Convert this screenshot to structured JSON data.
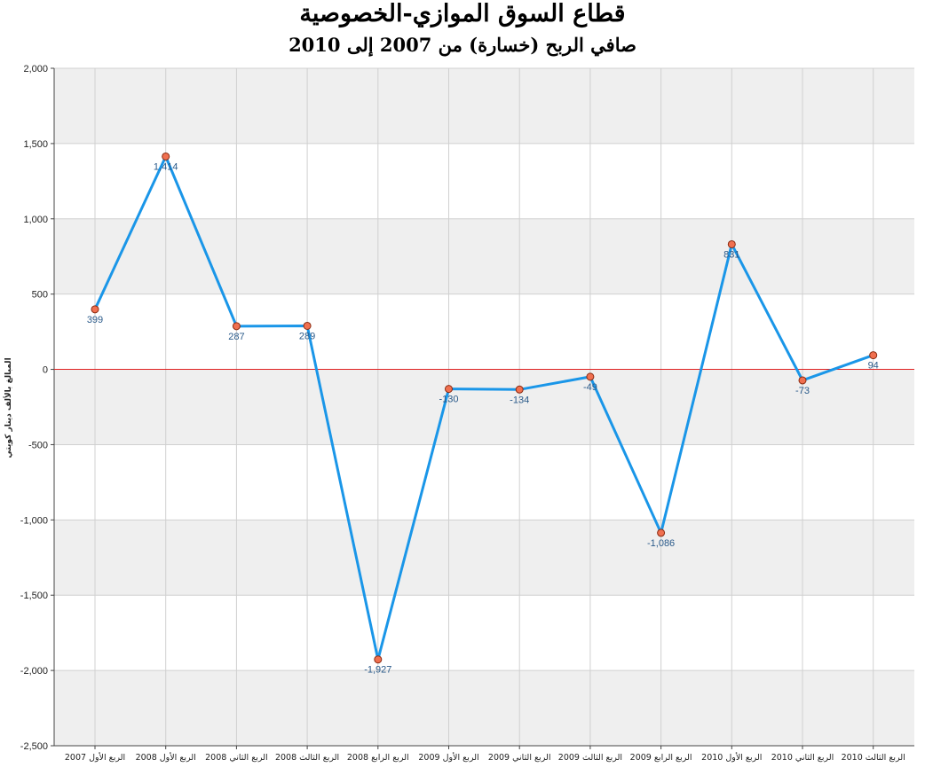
{
  "chart_data": {
    "type": "line",
    "title": "قطاع السوق الموازي-الخصوصية",
    "subtitle": "صافي الربح (خسارة) من 2007 إلى 2010",
    "ylabel": "المبالغ بالألف دينار كويتي",
    "xlabel": "",
    "ylim": [
      -2500,
      2000
    ],
    "y_ticks": [
      2000,
      1500,
      1000,
      500,
      0,
      -500,
      -1000,
      -1500,
      -2000,
      -2500
    ],
    "y_tick_labels": [
      "2,000",
      "1,500",
      "1,000",
      "500",
      "0",
      "-500",
      "-1,000",
      "-1,500",
      "-2,000",
      "-2,500"
    ],
    "categories": [
      "الربع الأول 2007",
      "الربع الأول 2008",
      "الربع الثاني 2008",
      "الربع الثالث 2008",
      "الربع الرابع 2008",
      "الربع الأول 2009",
      "الربع الثاني 2009",
      "الربع الثالث 2009",
      "الربع الرابع 2009",
      "الربع الأول 2010",
      "الربع الثاني 2010",
      "الربع الثالث 2010"
    ],
    "series": [
      {
        "values": [
          399,
          1414,
          287,
          289,
          -1927,
          -130,
          -134,
          -49,
          -1086,
          831,
          -73,
          94
        ],
        "labels": [
          "399",
          "1,414",
          "287",
          "289",
          "-1,927",
          "-130",
          "-134",
          "-49",
          "-1,086",
          "831",
          "-73",
          "94"
        ],
        "color": "#1a96e8",
        "marker_color": "#f07050"
      }
    ],
    "zero_line_color": "#e02020",
    "grid": true,
    "band_color": "#efefef"
  }
}
